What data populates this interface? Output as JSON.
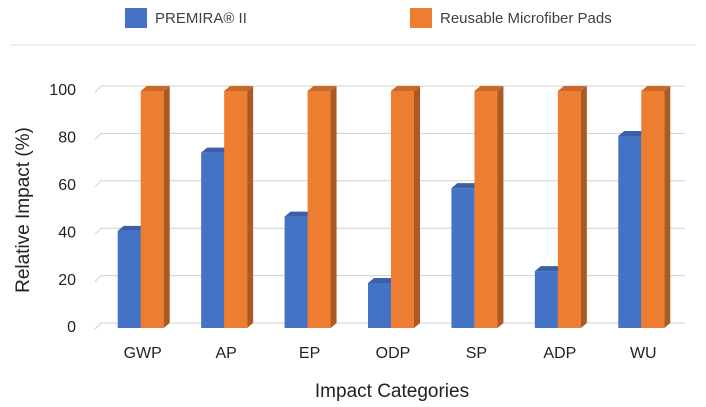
{
  "chart_data": {
    "type": "bar3d",
    "xlabel": "Impact Categories",
    "ylabel": "Relative Impact (%)",
    "categories": [
      "GWP",
      "AP",
      "EP",
      "ODP",
      "SP",
      "ADP",
      "WU"
    ],
    "series": [
      {
        "name": "PREMIRA® II",
        "color": "#4472c4",
        "values": [
          41,
          74,
          47,
          19,
          59,
          24,
          81
        ]
      },
      {
        "name": "Reusable Microfiber Pads",
        "color": "#ed7d31",
        "values": [
          100,
          100,
          100,
          100,
          100,
          100,
          100
        ]
      }
    ],
    "ylim": [
      0,
      100
    ],
    "yticks": [
      0,
      20,
      40,
      60,
      80,
      100
    ],
    "grid": true,
    "legend": "top"
  }
}
